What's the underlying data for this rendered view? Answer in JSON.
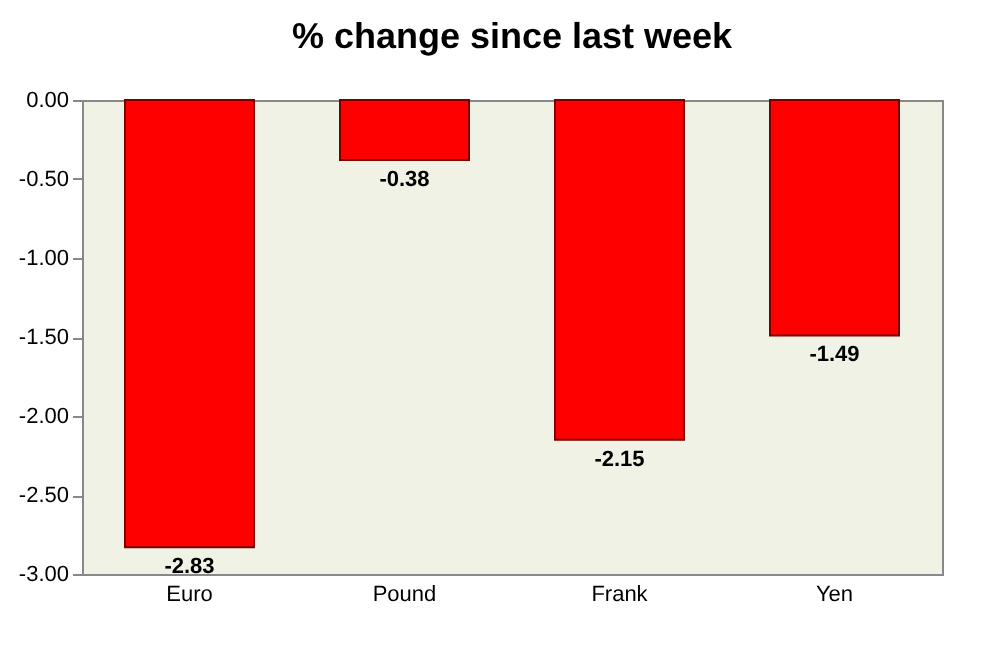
{
  "chart_data": {
    "type": "bar",
    "title": "% change since last week",
    "categories": [
      "Euro",
      "Pound",
      "Frank",
      "Yen"
    ],
    "values": [
      -2.83,
      -0.38,
      -2.15,
      -1.49
    ],
    "color": "#ff0000",
    "ylim": [
      -3,
      0
    ],
    "yticks": [
      {
        "value": 0,
        "label": "0.00"
      },
      {
        "value": -0.5,
        "label": "-0.50"
      },
      {
        "value": -1,
        "label": "-1.00"
      },
      {
        "value": -1.5,
        "label": "-1.50"
      },
      {
        "value": -2,
        "label": "-2.00"
      },
      {
        "value": -2.5,
        "label": "-2.50"
      },
      {
        "value": -3,
        "label": "-3.00"
      }
    ],
    "data_labels": true,
    "grid": false
  }
}
